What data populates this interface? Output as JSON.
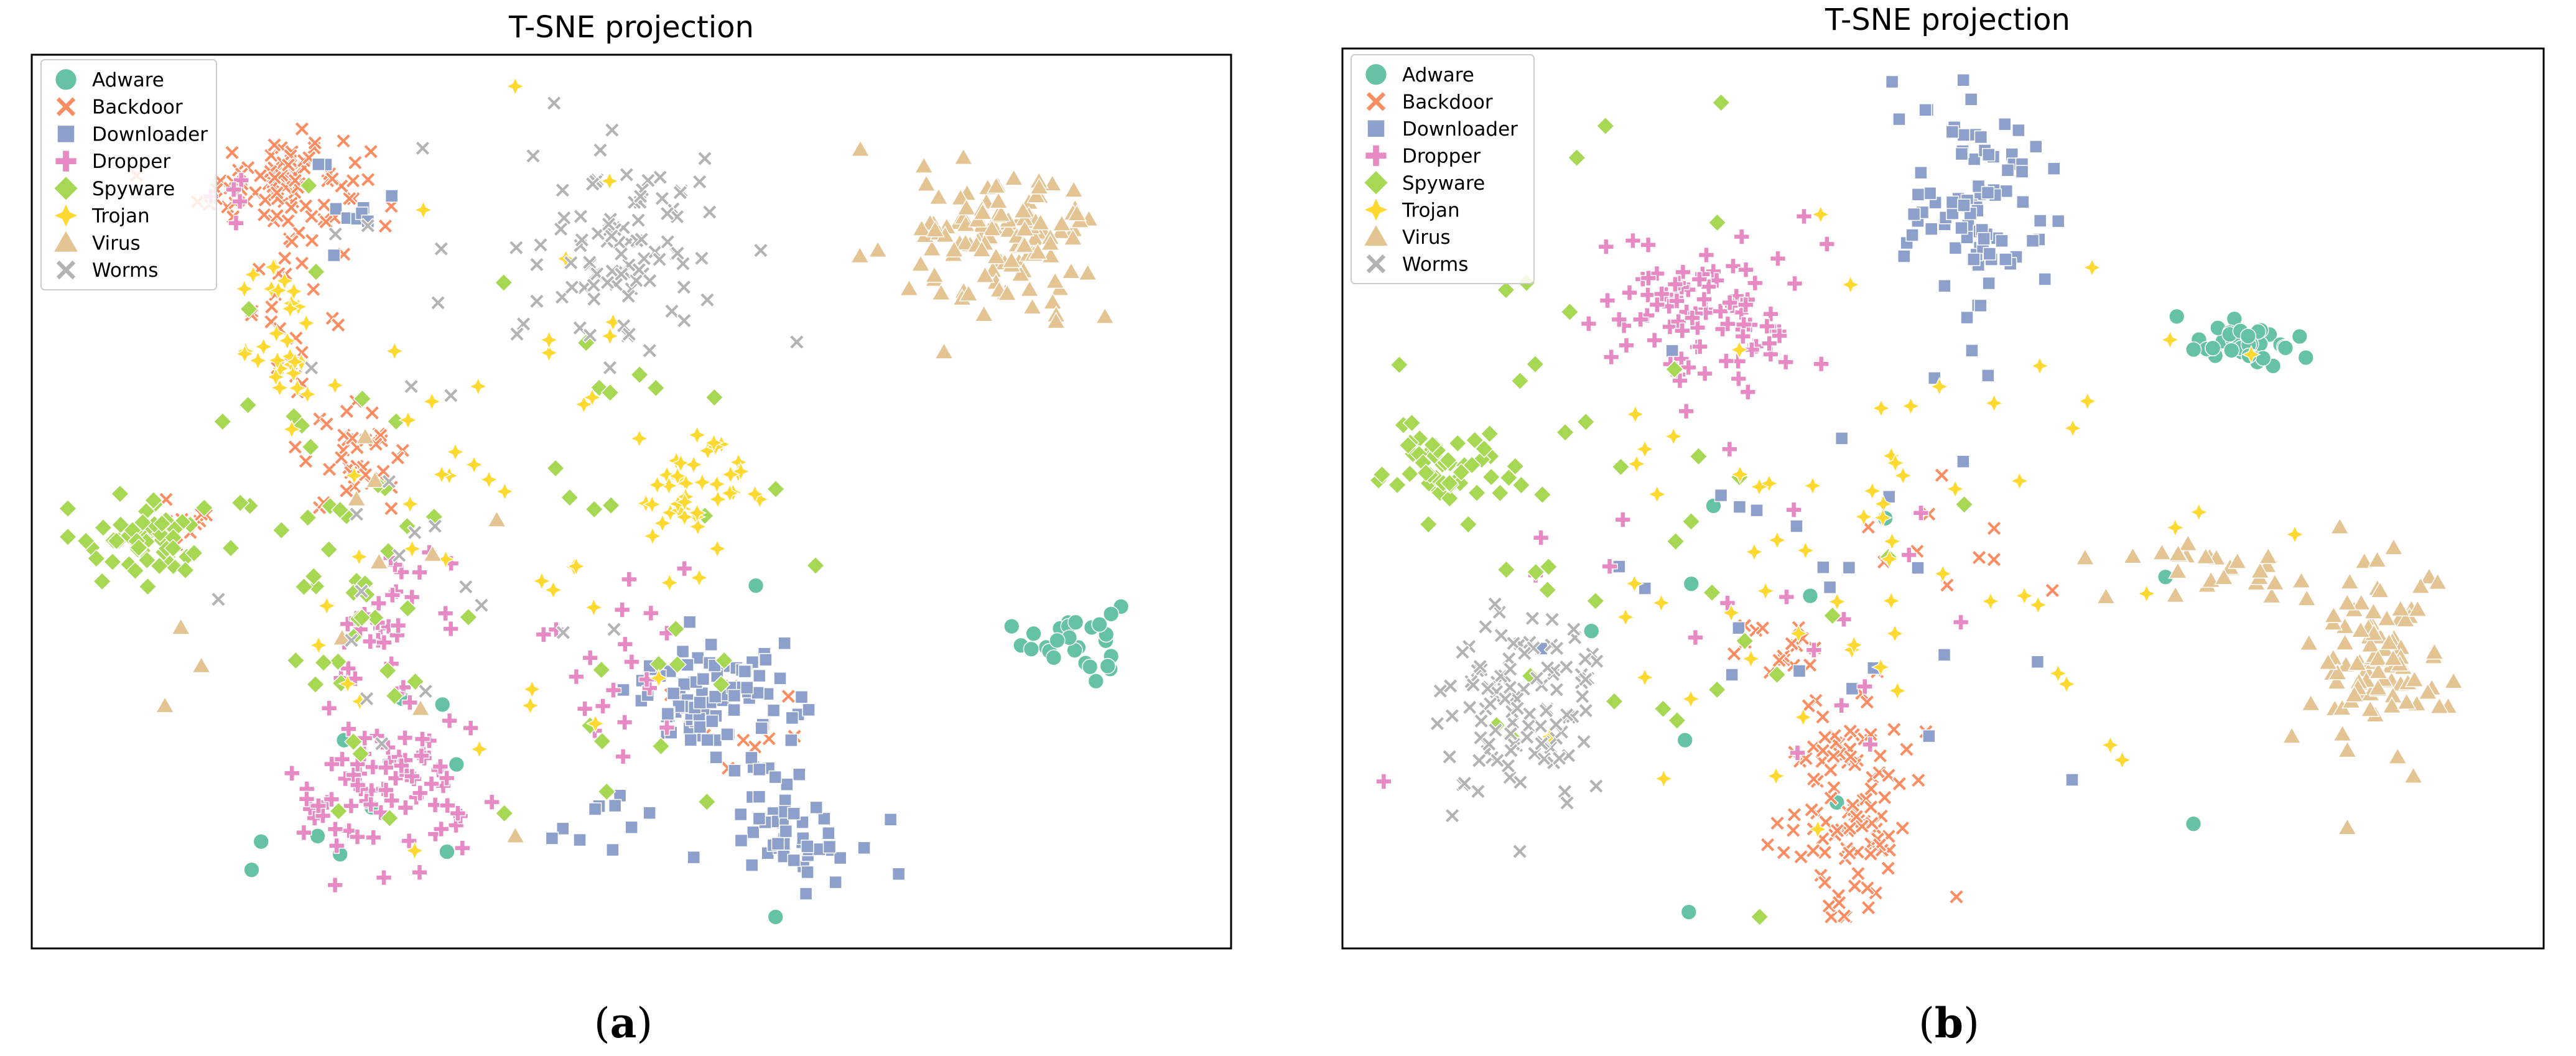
{
  "chart_data": [
    {
      "type": "scatter",
      "title": "T-SNE projection",
      "caption": "a",
      "legend": "top-left",
      "grid": false,
      "series": [
        {
          "name": "Adware",
          "color": "#66c2a5",
          "marker": "circle",
          "clusters": [
            {
              "cx": 0.88,
              "cy": 0.34,
              "rx": 0.035,
              "ry": 0.04,
              "n": 28
            },
            {
              "cx": 0.35,
              "cy": 0.2,
              "rx": 0.25,
              "ry": 0.25,
              "n": 12
            }
          ]
        },
        {
          "name": "Backdoor",
          "color": "#fc8d62",
          "marker": "x",
          "clusters": [
            {
              "cx": 0.2,
              "cy": 0.87,
              "rx": 0.06,
              "ry": 0.05,
              "n": 90
            },
            {
              "cx": 0.26,
              "cy": 0.55,
              "rx": 0.04,
              "ry": 0.05,
              "n": 35
            },
            {
              "cx": 0.21,
              "cy": 0.72,
              "rx": 0.03,
              "ry": 0.06,
              "n": 20
            },
            {
              "cx": 0.12,
              "cy": 0.47,
              "rx": 0.03,
              "ry": 0.03,
              "n": 10
            },
            {
              "cx": 0.6,
              "cy": 0.22,
              "rx": 0.06,
              "ry": 0.06,
              "n": 10
            }
          ]
        },
        {
          "name": "Downloader",
          "color": "#8da0cb",
          "marker": "square",
          "clusters": [
            {
              "cx": 0.57,
              "cy": 0.27,
              "rx": 0.06,
              "ry": 0.05,
              "n": 85
            },
            {
              "cx": 0.64,
              "cy": 0.13,
              "rx": 0.05,
              "ry": 0.06,
              "n": 55
            },
            {
              "cx": 0.48,
              "cy": 0.12,
              "rx": 0.04,
              "ry": 0.03,
              "n": 10
            },
            {
              "cx": 0.26,
              "cy": 0.85,
              "rx": 0.03,
              "ry": 0.06,
              "n": 10
            }
          ]
        },
        {
          "name": "Dropper",
          "color": "#e78ac3",
          "marker": "plus",
          "clusters": [
            {
              "cx": 0.29,
              "cy": 0.16,
              "rx": 0.07,
              "ry": 0.08,
              "n": 80
            },
            {
              "cx": 0.28,
              "cy": 0.36,
              "rx": 0.04,
              "ry": 0.1,
              "n": 30
            },
            {
              "cx": 0.5,
              "cy": 0.32,
              "rx": 0.06,
              "ry": 0.1,
              "n": 20
            },
            {
              "cx": 0.15,
              "cy": 0.86,
              "rx": 0.02,
              "ry": 0.04,
              "n": 5
            }
          ]
        },
        {
          "name": "Spyware",
          "color": "#a6d854",
          "marker": "diamond",
          "clusters": [
            {
              "cx": 0.08,
              "cy": 0.46,
              "rx": 0.05,
              "ry": 0.04,
              "n": 55
            },
            {
              "cx": 0.25,
              "cy": 0.45,
              "rx": 0.08,
              "ry": 0.25,
              "n": 50
            },
            {
              "cx": 0.5,
              "cy": 0.45,
              "rx": 0.1,
              "ry": 0.35,
              "n": 25
            }
          ]
        },
        {
          "name": "Trojan",
          "color": "#ffd92f",
          "marker": "star",
          "clusters": [
            {
              "cx": 0.56,
              "cy": 0.52,
              "rx": 0.05,
              "ry": 0.06,
              "n": 40
            },
            {
              "cx": 0.2,
              "cy": 0.7,
              "rx": 0.04,
              "ry": 0.08,
              "n": 30
            },
            {
              "cx": 0.4,
              "cy": 0.45,
              "rx": 0.15,
              "ry": 0.3,
              "n": 45
            }
          ]
        },
        {
          "name": "Virus",
          "color": "#e5c494",
          "marker": "triangle",
          "clusters": [
            {
              "cx": 0.82,
              "cy": 0.8,
              "rx": 0.065,
              "ry": 0.07,
              "n": 130
            },
            {
              "cx": 0.25,
              "cy": 0.42,
              "rx": 0.15,
              "ry": 0.3,
              "n": 12
            }
          ]
        },
        {
          "name": "Worms",
          "color": "#b3b3b3",
          "marker": "x",
          "clusters": [
            {
              "cx": 0.5,
              "cy": 0.79,
              "rx": 0.07,
              "ry": 0.1,
              "n": 90
            },
            {
              "cx": 0.3,
              "cy": 0.55,
              "rx": 0.15,
              "ry": 0.3,
              "n": 25
            }
          ]
        }
      ]
    },
    {
      "type": "scatter",
      "title": "T-SNE projection",
      "caption": "b",
      "legend": "top-left",
      "grid": false,
      "series": [
        {
          "name": "Adware",
          "color": "#66c2a5",
          "marker": "circle",
          "clusters": [
            {
              "cx": 0.76,
              "cy": 0.68,
              "rx": 0.06,
              "ry": 0.025,
              "n": 40
            },
            {
              "cx": 0.45,
              "cy": 0.35,
              "rx": 0.25,
              "ry": 0.25,
              "n": 10
            }
          ]
        },
        {
          "name": "Backdoor",
          "color": "#fc8d62",
          "marker": "x",
          "clusters": [
            {
              "cx": 0.42,
              "cy": 0.14,
              "rx": 0.05,
              "ry": 0.1,
              "n": 110
            },
            {
              "cx": 0.35,
              "cy": 0.32,
              "rx": 0.05,
              "ry": 0.03,
              "n": 15
            },
            {
              "cx": 0.5,
              "cy": 0.45,
              "rx": 0.08,
              "ry": 0.06,
              "n": 10
            }
          ]
        },
        {
          "name": "Downloader",
          "color": "#8da0cb",
          "marker": "square",
          "clusters": [
            {
              "cx": 0.53,
              "cy": 0.84,
              "rx": 0.06,
              "ry": 0.1,
              "n": 90
            },
            {
              "cx": 0.35,
              "cy": 0.38,
              "rx": 0.25,
              "ry": 0.25,
              "n": 25
            }
          ]
        },
        {
          "name": "Dropper",
          "color": "#e78ac3",
          "marker": "plus",
          "clusters": [
            {
              "cx": 0.3,
              "cy": 0.72,
              "rx": 0.08,
              "ry": 0.07,
              "n": 90
            },
            {
              "cx": 0.35,
              "cy": 0.4,
              "rx": 0.2,
              "ry": 0.2,
              "n": 20
            }
          ]
        },
        {
          "name": "Spyware",
          "color": "#a6d854",
          "marker": "diamond",
          "clusters": [
            {
              "cx": 0.07,
              "cy": 0.54,
              "rx": 0.04,
              "ry": 0.04,
              "n": 50
            },
            {
              "cx": 0.25,
              "cy": 0.5,
              "rx": 0.2,
              "ry": 0.3,
              "n": 40
            }
          ]
        },
        {
          "name": "Trojan",
          "color": "#ffd92f",
          "marker": "star",
          "clusters": [
            {
              "cx": 0.45,
              "cy": 0.45,
              "rx": 0.25,
              "ry": 0.25,
              "n": 70
            }
          ]
        },
        {
          "name": "Virus",
          "color": "#e5c494",
          "marker": "triangle",
          "clusters": [
            {
              "cx": 0.87,
              "cy": 0.32,
              "rx": 0.05,
              "ry": 0.1,
              "n": 100
            },
            {
              "cx": 0.73,
              "cy": 0.42,
              "rx": 0.06,
              "ry": 0.03,
              "n": 25
            }
          ]
        },
        {
          "name": "Worms",
          "color": "#b3b3b3",
          "marker": "x",
          "clusters": [
            {
              "cx": 0.14,
              "cy": 0.26,
              "rx": 0.06,
              "ry": 0.09,
              "n": 110
            }
          ]
        }
      ]
    }
  ]
}
